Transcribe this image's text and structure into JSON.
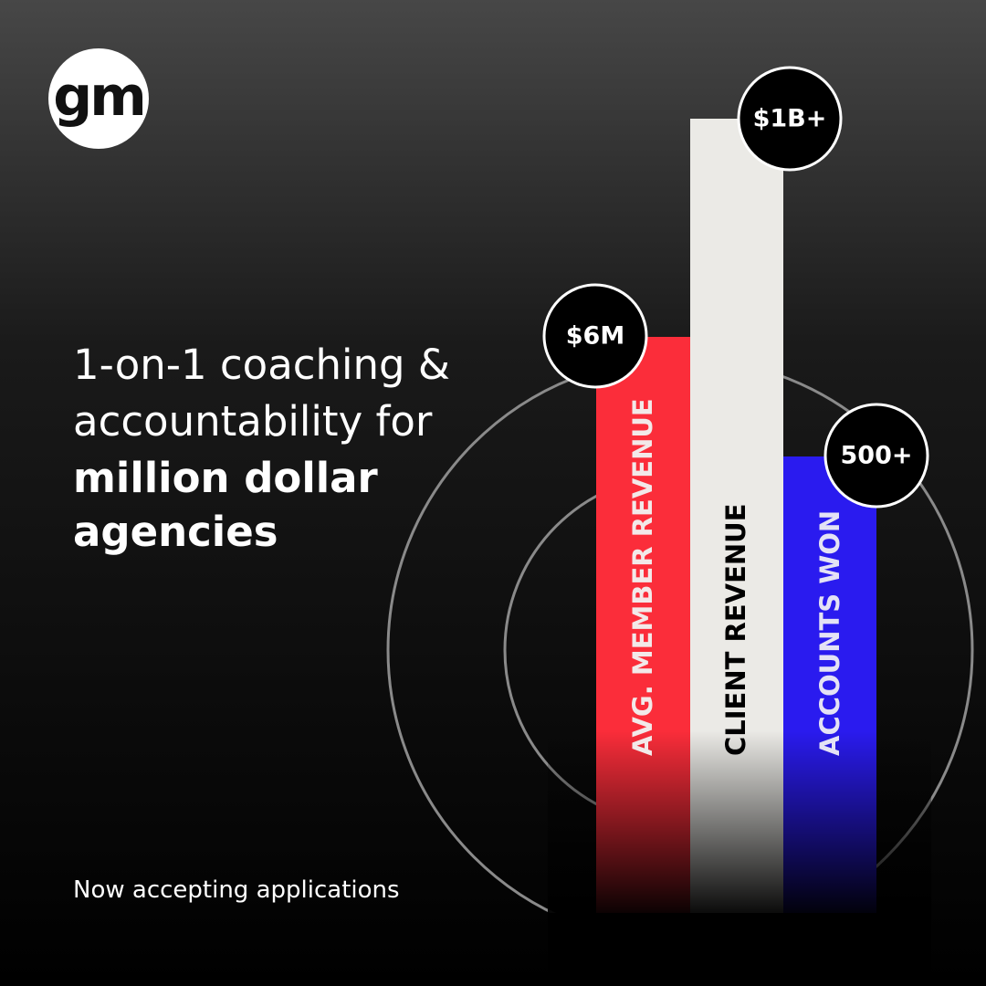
{
  "logo": {
    "text": "gm"
  },
  "headline": {
    "regular": [
      "1-on-1 coaching &",
      "accountability for"
    ],
    "bold": [
      "million dollar",
      "agencies"
    ]
  },
  "footer": {
    "text": "Now accepting applications"
  },
  "stats": [
    {
      "label": "AVG. MEMBER REVENUE",
      "value": "$6M"
    },
    {
      "label": "CLIENT REVENUE",
      "value": "$1B+"
    },
    {
      "label": "ACCOUNTS WON",
      "value": "500+"
    }
  ]
}
